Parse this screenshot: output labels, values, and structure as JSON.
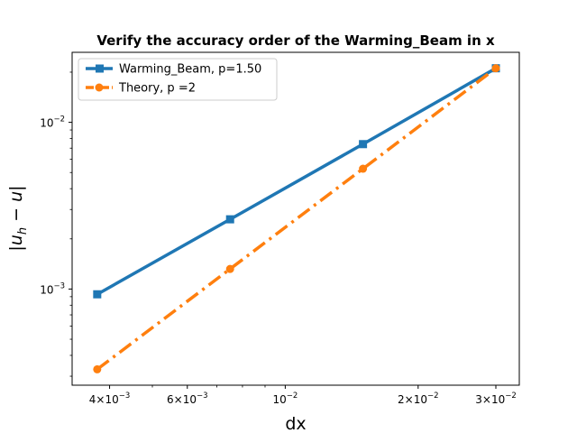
{
  "chart_data": {
    "type": "line",
    "title": "Verify the accuracy order of the Warming_Beam in x",
    "xlabel": "dx",
    "ylabel": "|u_h − u|",
    "xscale": "log",
    "yscale": "log",
    "xlim": [
      0.00329,
      0.0339
    ],
    "ylim": [
      0.000265,
      0.0263
    ],
    "grid": false,
    "legend_position": "upper left",
    "x": [
      0.00375,
      0.0075,
      0.015,
      0.03
    ],
    "series": [
      {
        "name": "Warming_Beam, p=1.50",
        "values": [
          0.00093,
          0.00262,
          0.0074,
          0.0211
        ],
        "color": "#1f77b4",
        "marker": "square",
        "linestyle": "solid"
      },
      {
        "name": "Theory, p =2",
        "values": [
          0.00033,
          0.00132,
          0.00527,
          0.0211
        ],
        "color": "#ff7f0e",
        "marker": "circle",
        "linestyle": "dashdot"
      }
    ],
    "xticks_major": [
      {
        "mantissa": "4",
        "exp": "-3"
      },
      {
        "mantissa": "6",
        "exp": "-3"
      },
      {
        "mantissa": "",
        "exp": "-2"
      },
      {
        "mantissa": "2",
        "exp": "-2"
      },
      {
        "mantissa": "3",
        "exp": "-2"
      }
    ],
    "yticks_major": [
      {
        "mantissa": "",
        "exp": "-3"
      },
      {
        "mantissa": "",
        "exp": "-2"
      }
    ]
  }
}
